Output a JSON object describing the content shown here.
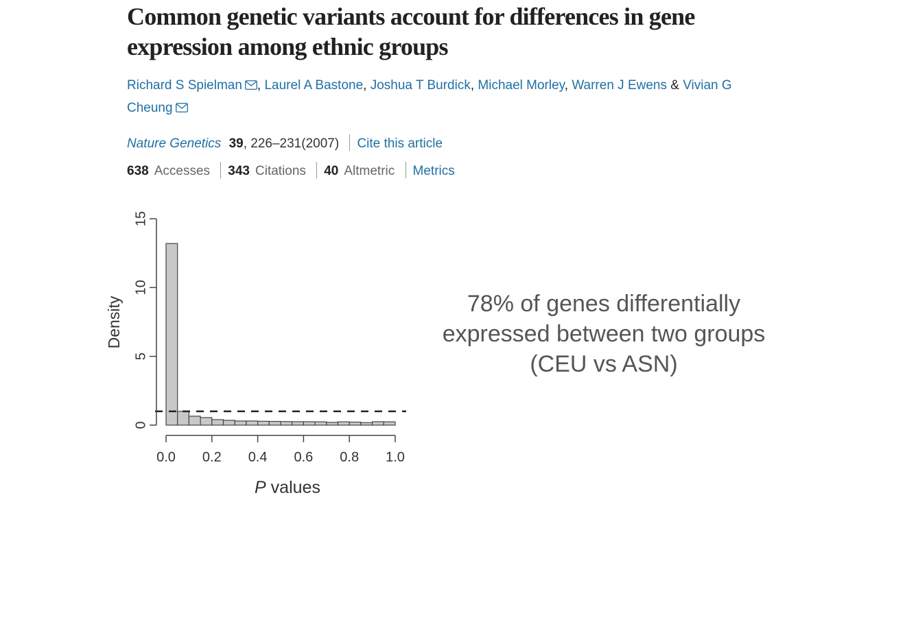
{
  "article": {
    "title": "Common genetic variants account for differences in gene expression among ethnic groups",
    "authors": [
      {
        "name": "Richard S Spielman",
        "mail": true,
        "sep": ", "
      },
      {
        "name": "Laurel A Bastone",
        "mail": false,
        "sep": ", "
      },
      {
        "name": "Joshua T Burdick",
        "mail": false,
        "sep": ", "
      },
      {
        "name": "Michael Morley",
        "mail": false,
        "sep": ", "
      },
      {
        "name": "Warren J Ewens",
        "mail": false,
        "sep": " & "
      },
      {
        "name": "Vivian G Cheung",
        "mail": true,
        "sep": ""
      }
    ],
    "journal": "Nature Genetics",
    "volume": "39",
    "pages": ", 226–231",
    "year": "(2007)",
    "cite_label": "Cite this article",
    "metrics": {
      "accesses_value": "638",
      "accesses_label": "Accesses",
      "citations_value": "343",
      "citations_label": "Citations",
      "altmetric_value": "40",
      "altmetric_label": "Altmetric",
      "metrics_link": "Metrics"
    },
    "link_color": "#1f6fa4"
  },
  "caption": {
    "line1": "78% of genes differentially",
    "line2": "expressed between two groups",
    "line3": "(CEU vs ASN)"
  },
  "chart_data": {
    "type": "bar",
    "xlabel_italic": "P",
    "xlabel_rest": " values",
    "ylabel": "Density",
    "xlim": [
      0,
      1
    ],
    "ylim": [
      0,
      15
    ],
    "xticks": [
      "0.0",
      "0.2",
      "0.4",
      "0.6",
      "0.8",
      "1.0"
    ],
    "yticks": [
      "0",
      "5",
      "10",
      "15"
    ],
    "bin_width": 0.05,
    "values": [
      13.2,
      1.0,
      0.65,
      0.55,
      0.4,
      0.35,
      0.3,
      0.3,
      0.28,
      0.27,
      0.26,
      0.25,
      0.25,
      0.24,
      0.2,
      0.24,
      0.22,
      0.18,
      0.25,
      0.24
    ],
    "reference_line": 1.0,
    "bar_color": "#c8c8c8"
  }
}
